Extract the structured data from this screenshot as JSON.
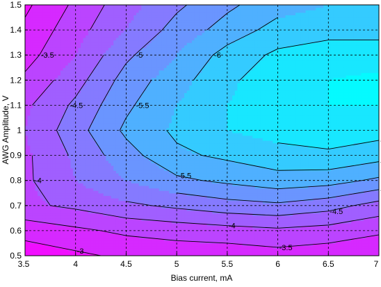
{
  "chart_data": {
    "type": "contour",
    "xlabel": "Bias current, mA",
    "ylabel": "AWG Amplitude, V",
    "xlim": [
      3.5,
      7
    ],
    "ylim": [
      0.5,
      1.5
    ],
    "x_ticks": [
      "3.5",
      "4",
      "4.5",
      "5",
      "5.5",
      "6",
      "6.5",
      "7"
    ],
    "y_ticks": [
      "0.5",
      "0.6",
      "0.7",
      "0.8",
      "0.9",
      "1",
      "1.1",
      "1.2",
      "1.3",
      "1.4",
      "1.5"
    ],
    "grid": true,
    "colormap": "cool",
    "color_low": "#ff00ff",
    "color_high": "#00ffff",
    "color_range": [
      -2.5,
      -7.2
    ],
    "x": [
      3.5,
      4,
      4.5,
      5,
      5.5,
      6,
      6.5,
      7
    ],
    "y": [
      0.5,
      0.6,
      0.7,
      0.8,
      0.9,
      1.0,
      1.1,
      1.2,
      1.3,
      1.4,
      1.5
    ],
    "z": [
      [
        -2.7,
        -2.9,
        -3.1,
        -3.2,
        -3.2,
        -3.3,
        -3.2,
        -3.0
      ],
      [
        -3.2,
        -3.4,
        -3.6,
        -3.7,
        -3.8,
        -3.9,
        -3.8,
        -3.6
      ],
      [
        -3.9,
        -4.1,
        -4.4,
        -4.6,
        -4.8,
        -4.9,
        -4.7,
        -4.3
      ],
      [
        -3.9,
        -4.5,
        -5.0,
        -5.4,
        -5.6,
        -5.8,
        -5.7,
        -5.4
      ],
      [
        -3.9,
        -4.6,
        -5.3,
        -5.9,
        -6.1,
        -6.3,
        -6.4,
        -6.2
      ],
      [
        -4.0,
        -4.8,
        -5.6,
        -6.1,
        -6.5,
        -6.7,
        -6.8,
        -6.7
      ],
      [
        -3.9,
        -4.6,
        -5.4,
        -6.0,
        -6.5,
        -6.8,
        -7.0,
        -7.0
      ],
      [
        -3.6,
        -4.3,
        -5.2,
        -5.8,
        -6.4,
        -6.8,
        -7.0,
        -7.1
      ],
      [
        -3.3,
        -4.0,
        -4.9,
        -5.5,
        -6.2,
        -6.6,
        -6.8,
        -6.8
      ],
      [
        -3.1,
        -3.8,
        -4.5,
        -5.2,
        -5.7,
        -6.2,
        -6.3,
        -6.3
      ],
      [
        -2.9,
        -3.6,
        -4.3,
        -4.9,
        -5.4,
        -5.8,
        -6.0,
        -6.0
      ]
    ],
    "contour_levels": [
      "-3",
      "-3.5",
      "-4",
      "-4.5",
      "-5",
      "-5.5",
      "-6",
      "-6.5",
      "-7"
    ]
  }
}
